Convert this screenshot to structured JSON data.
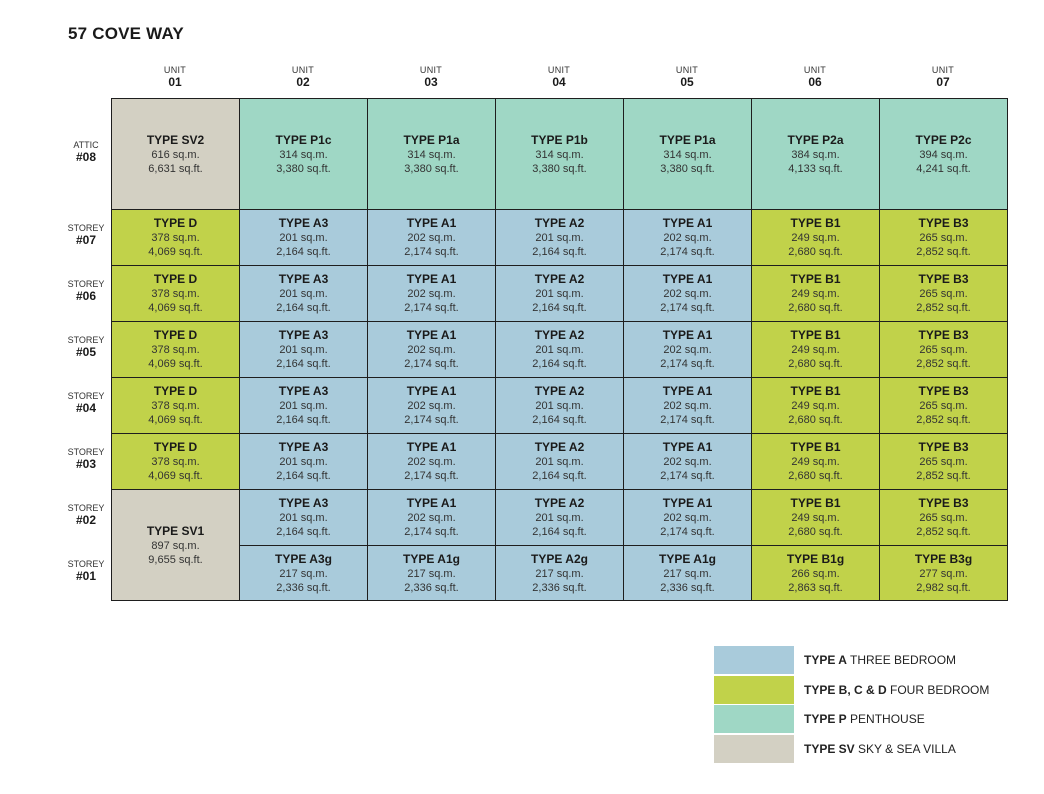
{
  "title": "57 COVE WAY",
  "colors": {
    "A": "#a9cbdb",
    "B": "#c1d24a",
    "P": "#9fd7c5",
    "SV": "#d3d0c3"
  },
  "columns": [
    {
      "label": "UNIT",
      "num": "01"
    },
    {
      "label": "UNIT",
      "num": "02"
    },
    {
      "label": "UNIT",
      "num": "03"
    },
    {
      "label": "UNIT",
      "num": "04"
    },
    {
      "label": "UNIT",
      "num": "05"
    },
    {
      "label": "UNIT",
      "num": "06"
    },
    {
      "label": "UNIT",
      "num": "07"
    }
  ],
  "rows": [
    {
      "label": "ATTIC",
      "num": "#08"
    },
    {
      "label": "STOREY",
      "num": "#07"
    },
    {
      "label": "STOREY",
      "num": "#06"
    },
    {
      "label": "STOREY",
      "num": "#05"
    },
    {
      "label": "STOREY",
      "num": "#04"
    },
    {
      "label": "STOREY",
      "num": "#03"
    },
    {
      "label": "STOREY",
      "num": "#02"
    },
    {
      "label": "STOREY",
      "num": "#01"
    }
  ],
  "cells": [
    {
      "type": "TYPE SV2",
      "sqm": "616 sq.m.",
      "sqft": "6,631 sq.ft.",
      "cat": "SV"
    },
    {
      "type": "TYPE P1c",
      "sqm": "314 sq.m.",
      "sqft": "3,380 sq.ft.",
      "cat": "P"
    },
    {
      "type": "TYPE P1a",
      "sqm": "314 sq.m.",
      "sqft": "3,380 sq.ft.",
      "cat": "P"
    },
    {
      "type": "TYPE P1b",
      "sqm": "314 sq.m.",
      "sqft": "3,380 sq.ft.",
      "cat": "P"
    },
    {
      "type": "TYPE P1a",
      "sqm": "314 sq.m.",
      "sqft": "3,380 sq.ft.",
      "cat": "P"
    },
    {
      "type": "TYPE P2a",
      "sqm": "384 sq.m.",
      "sqft": "4,133 sq.ft.",
      "cat": "P"
    },
    {
      "type": "TYPE P2c",
      "sqm": "394 sq.m.",
      "sqft": "4,241 sq.ft.",
      "cat": "P"
    },
    {
      "type": "TYPE D",
      "sqm": "378 sq.m.",
      "sqft": "4,069 sq.ft.",
      "cat": "B"
    },
    {
      "type": "TYPE A3",
      "sqm": "201 sq.m.",
      "sqft": "2,164 sq.ft.",
      "cat": "A"
    },
    {
      "type": "TYPE A1",
      "sqm": "202 sq.m.",
      "sqft": "2,174 sq.ft.",
      "cat": "A"
    },
    {
      "type": "TYPE A2",
      "sqm": "201 sq.m.",
      "sqft": "2,164 sq.ft.",
      "cat": "A"
    },
    {
      "type": "TYPE A1",
      "sqm": "202 sq.m.",
      "sqft": "2,174 sq.ft.",
      "cat": "A"
    },
    {
      "type": "TYPE B1",
      "sqm": "249 sq.m.",
      "sqft": "2,680 sq.ft.",
      "cat": "B"
    },
    {
      "type": "TYPE B3",
      "sqm": "265 sq.m.",
      "sqft": "2,852 sq.ft.",
      "cat": "B"
    },
    {
      "type": "TYPE D",
      "sqm": "378 sq.m.",
      "sqft": "4,069 sq.ft.",
      "cat": "B"
    },
    {
      "type": "TYPE A3",
      "sqm": "201 sq.m.",
      "sqft": "2,164 sq.ft.",
      "cat": "A"
    },
    {
      "type": "TYPE A1",
      "sqm": "202 sq.m.",
      "sqft": "2,174 sq.ft.",
      "cat": "A"
    },
    {
      "type": "TYPE A2",
      "sqm": "201 sq.m.",
      "sqft": "2,164 sq.ft.",
      "cat": "A"
    },
    {
      "type": "TYPE A1",
      "sqm": "202 sq.m.",
      "sqft": "2,174 sq.ft.",
      "cat": "A"
    },
    {
      "type": "TYPE B1",
      "sqm": "249 sq.m.",
      "sqft": "2,680 sq.ft.",
      "cat": "B"
    },
    {
      "type": "TYPE B3",
      "sqm": "265 sq.m.",
      "sqft": "2,852 sq.ft.",
      "cat": "B"
    },
    {
      "type": "TYPE D",
      "sqm": "378 sq.m.",
      "sqft": "4,069 sq.ft.",
      "cat": "B"
    },
    {
      "type": "TYPE A3",
      "sqm": "201 sq.m.",
      "sqft": "2,164 sq.ft.",
      "cat": "A"
    },
    {
      "type": "TYPE A1",
      "sqm": "202 sq.m.",
      "sqft": "2,174 sq.ft.",
      "cat": "A"
    },
    {
      "type": "TYPE A2",
      "sqm": "201 sq.m.",
      "sqft": "2,164 sq.ft.",
      "cat": "A"
    },
    {
      "type": "TYPE A1",
      "sqm": "202 sq.m.",
      "sqft": "2,174 sq.ft.",
      "cat": "A"
    },
    {
      "type": "TYPE B1",
      "sqm": "249 sq.m.",
      "sqft": "2,680 sq.ft.",
      "cat": "B"
    },
    {
      "type": "TYPE B3",
      "sqm": "265 sq.m.",
      "sqft": "2,852 sq.ft.",
      "cat": "B"
    },
    {
      "type": "TYPE D",
      "sqm": "378 sq.m.",
      "sqft": "4,069 sq.ft.",
      "cat": "B"
    },
    {
      "type": "TYPE A3",
      "sqm": "201 sq.m.",
      "sqft": "2,164 sq.ft.",
      "cat": "A"
    },
    {
      "type": "TYPE A1",
      "sqm": "202 sq.m.",
      "sqft": "2,174 sq.ft.",
      "cat": "A"
    },
    {
      "type": "TYPE A2",
      "sqm": "201 sq.m.",
      "sqft": "2,164 sq.ft.",
      "cat": "A"
    },
    {
      "type": "TYPE A1",
      "sqm": "202 sq.m.",
      "sqft": "2,174 sq.ft.",
      "cat": "A"
    },
    {
      "type": "TYPE B1",
      "sqm": "249 sq.m.",
      "sqft": "2,680 sq.ft.",
      "cat": "B"
    },
    {
      "type": "TYPE B3",
      "sqm": "265 sq.m.",
      "sqft": "2,852 sq.ft.",
      "cat": "B"
    },
    {
      "type": "TYPE D",
      "sqm": "378 sq.m.",
      "sqft": "4,069 sq.ft.",
      "cat": "B"
    },
    {
      "type": "TYPE A3",
      "sqm": "201 sq.m.",
      "sqft": "2,164 sq.ft.",
      "cat": "A"
    },
    {
      "type": "TYPE A1",
      "sqm": "202 sq.m.",
      "sqft": "2,174 sq.ft.",
      "cat": "A"
    },
    {
      "type": "TYPE A2",
      "sqm": "201 sq.m.",
      "sqft": "2,164 sq.ft.",
      "cat": "A"
    },
    {
      "type": "TYPE A1",
      "sqm": "202 sq.m.",
      "sqft": "2,174 sq.ft.",
      "cat": "A"
    },
    {
      "type": "TYPE B1",
      "sqm": "249 sq.m.",
      "sqft": "2,680 sq.ft.",
      "cat": "B"
    },
    {
      "type": "TYPE B3",
      "sqm": "265 sq.m.",
      "sqft": "2,852 sq.ft.",
      "cat": "B"
    },
    {
      "type": "TYPE SV1",
      "sqm": "897 sq.m.",
      "sqft": "9,655 sq.ft.",
      "cat": "SV"
    },
    {
      "type": "TYPE A3",
      "sqm": "201 sq.m.",
      "sqft": "2,164 sq.ft.",
      "cat": "A"
    },
    {
      "type": "TYPE A1",
      "sqm": "202 sq.m.",
      "sqft": "2,174 sq.ft.",
      "cat": "A"
    },
    {
      "type": "TYPE A2",
      "sqm": "201 sq.m.",
      "sqft": "2,164 sq.ft.",
      "cat": "A"
    },
    {
      "type": "TYPE A1",
      "sqm": "202 sq.m.",
      "sqft": "2,174 sq.ft.",
      "cat": "A"
    },
    {
      "type": "TYPE B1",
      "sqm": "249 sq.m.",
      "sqft": "2,680 sq.ft.",
      "cat": "B"
    },
    {
      "type": "TYPE B3",
      "sqm": "265 sq.m.",
      "sqft": "2,852 sq.ft.",
      "cat": "B"
    },
    {
      "type": "TYPE A3g",
      "sqm": "217 sq.m.",
      "sqft": "2,336 sq.ft.",
      "cat": "A"
    },
    {
      "type": "TYPE A1g",
      "sqm": "217 sq.m.",
      "sqft": "2,336 sq.ft.",
      "cat": "A"
    },
    {
      "type": "TYPE A2g",
      "sqm": "217 sq.m.",
      "sqft": "2,336 sq.ft.",
      "cat": "A"
    },
    {
      "type": "TYPE A1g",
      "sqm": "217 sq.m.",
      "sqft": "2,336 sq.ft.",
      "cat": "A"
    },
    {
      "type": "TYPE B1g",
      "sqm": "266 sq.m.",
      "sqft": "2,863 sq.ft.",
      "cat": "B"
    },
    {
      "type": "TYPE B3g",
      "sqm": "277 sq.m.",
      "sqft": "2,982 sq.ft.",
      "cat": "B"
    }
  ],
  "legend": [
    {
      "bold": "TYPE A",
      "text": " THREE BEDROOM",
      "cat": "A"
    },
    {
      "bold": "TYPE B, C & D",
      "text": " FOUR BEDROOM",
      "cat": "B"
    },
    {
      "bold": "TYPE P",
      "text": " PENTHOUSE",
      "cat": "P"
    },
    {
      "bold": "TYPE SV",
      "text": " SKY & SEA VILLA",
      "cat": "SV"
    }
  ]
}
